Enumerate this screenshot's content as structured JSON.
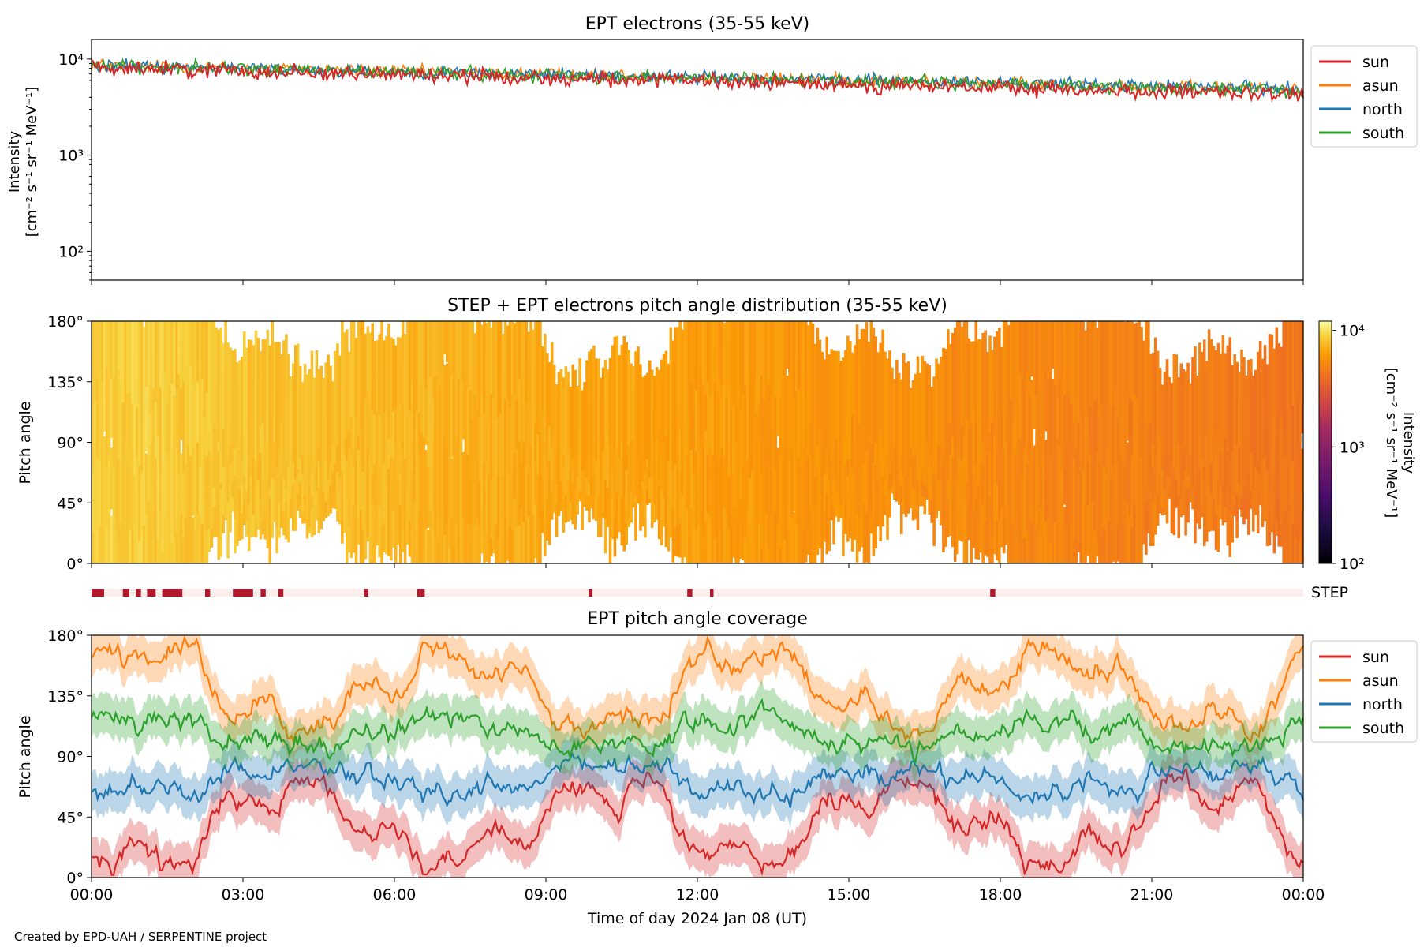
{
  "footer": "Created by EPD-UAH / SERPENTINE project",
  "xaxis": {
    "label": "Time of day 2024 Jan 08 (UT)",
    "ticks": [
      "00:00",
      "03:00",
      "06:00",
      "09:00",
      "12:00",
      "15:00",
      "18:00",
      "21:00",
      "00:00"
    ]
  },
  "colors": {
    "sun": "#d62728",
    "asun": "#ff7f0e",
    "north": "#1f77b4",
    "south": "#2ca02c",
    "step_on": "#b2182b",
    "step_off": "#fdeeee"
  },
  "chart_data": [
    {
      "type": "line",
      "title": "EPT electrons (35-55 keV)",
      "ylabel": "Intensity",
      "yunit": "[cm⁻² s⁻¹ sr⁻¹ MeV⁻¹]",
      "yscale": "log",
      "ylim": [
        50,
        16000
      ],
      "yticks": [
        {
          "v": 100,
          "label": "10²"
        },
        {
          "v": 1000,
          "label": "10³"
        },
        {
          "v": 10000,
          "label": "10⁴"
        }
      ],
      "xlim_hours": [
        0,
        24
      ],
      "legend_position": "outside-right",
      "series": [
        {
          "name": "sun",
          "start": 8200,
          "end": 4200,
          "noise": 0.12
        },
        {
          "name": "asun",
          "start": 8700,
          "end": 4800,
          "noise": 0.1
        },
        {
          "name": "north",
          "start": 8600,
          "end": 4900,
          "noise": 0.1
        },
        {
          "name": "south",
          "start": 8500,
          "end": 4700,
          "noise": 0.11
        }
      ]
    },
    {
      "type": "heatmap",
      "title": "STEP + EPT electrons pitch angle distribution (35-55 keV)",
      "ylabel": "Pitch angle",
      "yticks": [
        "0°",
        "45°",
        "90°",
        "135°",
        "180°"
      ],
      "ylim": [
        0,
        180
      ],
      "colorbar": {
        "label": "Intensity",
        "unit": "[cm⁻² s⁻¹ sr⁻¹ MeV⁻¹]",
        "scale": "log",
        "range": [
          100,
          12000
        ],
        "ticks": [
          {
            "v": 100,
            "label": "10²"
          },
          {
            "v": 1000,
            "label": "10³"
          },
          {
            "v": 10000,
            "label": "10⁴"
          }
        ]
      },
      "intensity_start": 9000,
      "intensity_end": 4300
    },
    {
      "type": "timeline",
      "label": "STEP",
      "active_hours": [
        [
          0.0,
          0.25
        ],
        [
          0.62,
          0.75
        ],
        [
          0.88,
          0.98
        ],
        [
          1.1,
          1.27
        ],
        [
          1.4,
          1.8
        ],
        [
          2.25,
          2.35
        ],
        [
          2.8,
          3.2
        ],
        [
          3.35,
          3.45
        ],
        [
          3.7,
          3.8
        ],
        [
          5.4,
          5.48
        ],
        [
          6.45,
          6.6
        ],
        [
          9.85,
          9.92
        ],
        [
          11.8,
          11.9
        ],
        [
          12.25,
          12.32
        ],
        [
          17.8,
          17.9
        ]
      ]
    },
    {
      "type": "line",
      "title": "EPT pitch angle coverage",
      "ylabel": "Pitch angle",
      "yticks": [
        "0°",
        "45°",
        "90°",
        "135°",
        "180°"
      ],
      "ylim": [
        0,
        180
      ],
      "legend_position": "outside-right",
      "band_width_deg": 15,
      "series": [
        {
          "name": "sun",
          "phase": "low"
        },
        {
          "name": "asun",
          "phase": "high"
        },
        {
          "name": "north",
          "phase": "mid-low"
        },
        {
          "name": "south",
          "phase": "mid-high"
        }
      ]
    }
  ]
}
